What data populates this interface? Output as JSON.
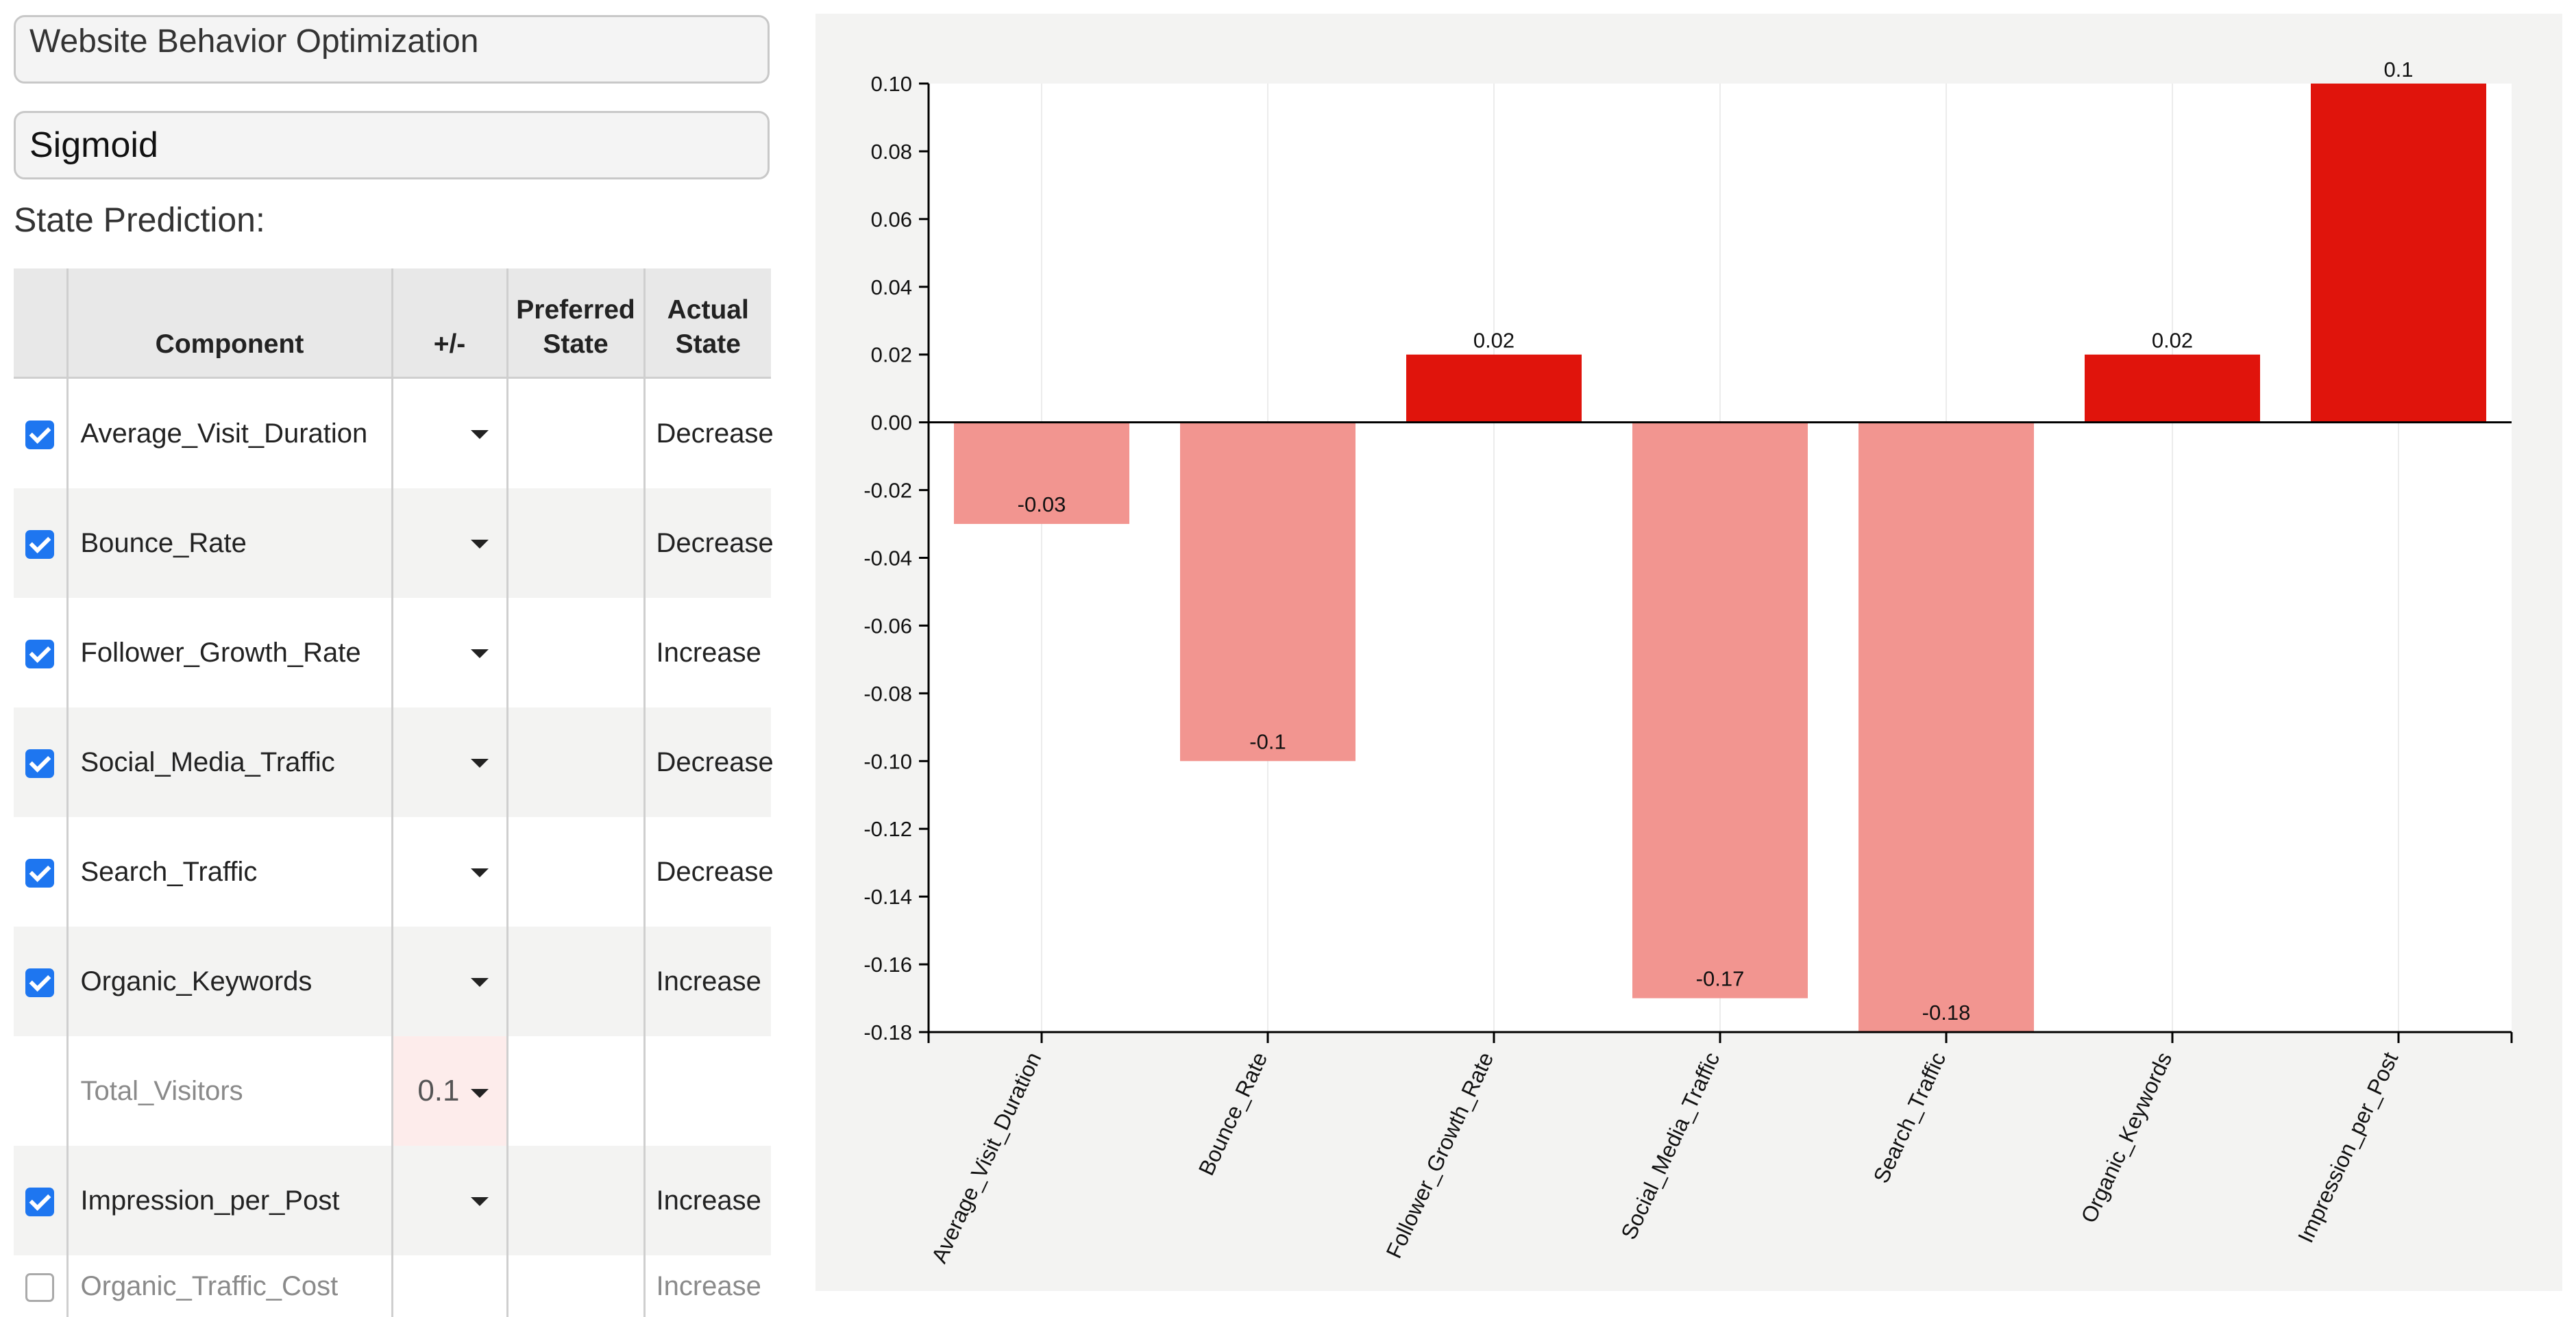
{
  "model_name": "Website Behavior Optimization",
  "activation_function": "Sigmoid",
  "state_prediction_label": "State Prediction:",
  "table": {
    "headers": {
      "component": "Component",
      "sign": "+/-",
      "preferred": "Preferred State",
      "actual": "Actual State"
    },
    "rows": [
      {
        "checked": true,
        "component": "Average_Visit_Duration",
        "sign": "",
        "preferred": "",
        "actual": "Decrease"
      },
      {
        "checked": true,
        "component": "Bounce_Rate",
        "sign": "",
        "preferred": "",
        "actual": "Decrease"
      },
      {
        "checked": true,
        "component": "Follower_Growth_Rate",
        "sign": "",
        "preferred": "",
        "actual": "Increase"
      },
      {
        "checked": true,
        "component": "Social_Media_Traffic",
        "sign": "",
        "preferred": "",
        "actual": "Decrease"
      },
      {
        "checked": true,
        "component": "Search_Traffic",
        "sign": "",
        "preferred": "",
        "actual": "Decrease"
      },
      {
        "checked": true,
        "component": "Organic_Keywords",
        "sign": "",
        "preferred": "",
        "actual": "Increase"
      },
      {
        "checked": null,
        "component": "Total_Visitors",
        "sign": "0.1",
        "preferred": "",
        "actual": ""
      },
      {
        "checked": true,
        "component": "Impression_per_Post",
        "sign": "",
        "preferred": "",
        "actual": "Increase"
      },
      {
        "checked": false,
        "component": "Organic_Traffic_Cost",
        "sign": "",
        "preferred": "",
        "actual": "Increase"
      }
    ]
  },
  "chart_data": {
    "type": "bar",
    "categories": [
      "Average_Visit_Duration",
      "Bounce_Rate",
      "Follower_Growth_Rate",
      "Social_Media_Traffic",
      "Search_Traffic",
      "Organic_Keywords",
      "Impression_per_Post"
    ],
    "values": [
      -0.03,
      -0.1,
      0.02,
      -0.17,
      -0.18,
      0.02,
      0.1
    ],
    "value_labels": [
      "-0.03",
      "-0.1",
      "0.02",
      "-0.17",
      "-0.18",
      "0.02",
      "0.1"
    ],
    "ylim": [
      -0.18,
      0.1
    ],
    "yticks": [
      0.1,
      0.08,
      0.06,
      0.04,
      0.02,
      0.0,
      -0.02,
      -0.04,
      -0.06,
      -0.08,
      -0.1,
      -0.12,
      -0.14,
      -0.16,
      -0.18
    ],
    "ytick_labels": [
      "0.10",
      "0.08",
      "0.06",
      "0.04",
      "0.02",
      "0.00",
      "-0.02",
      "-0.04",
      "-0.06",
      "-0.08",
      "-0.10",
      "-0.12",
      "-0.14",
      "-0.16",
      "-0.18"
    ],
    "colors": {
      "positive": "#e0140c",
      "negative": "#f29590"
    },
    "grid": "vertical",
    "title": "",
    "xlabel": "",
    "ylabel": ""
  }
}
